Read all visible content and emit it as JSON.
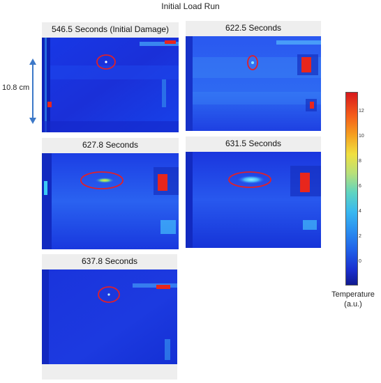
{
  "figure": {
    "title": "Initial Load Run",
    "scale_label": "10.8 cm",
    "panels": [
      {
        "caption": "546.5 Seconds (Initial Damage)"
      },
      {
        "caption": "622.5 Seconds"
      },
      {
        "caption": "627.8 Seconds"
      },
      {
        "caption": "631.5 Seconds"
      },
      {
        "caption": "637.8  Seconds"
      }
    ],
    "colorbar": {
      "ticks": [
        "12",
        "10",
        "8",
        "6",
        "4",
        "2",
        "0"
      ],
      "title_line1": "Temperature",
      "title_line2": "(a.u.)"
    }
  },
  "colors": {
    "background_blue": "#1a35e0",
    "hot_red": "#e8261c",
    "annotation_red": "#e0202a",
    "arrow_blue": "#3c78c8"
  }
}
